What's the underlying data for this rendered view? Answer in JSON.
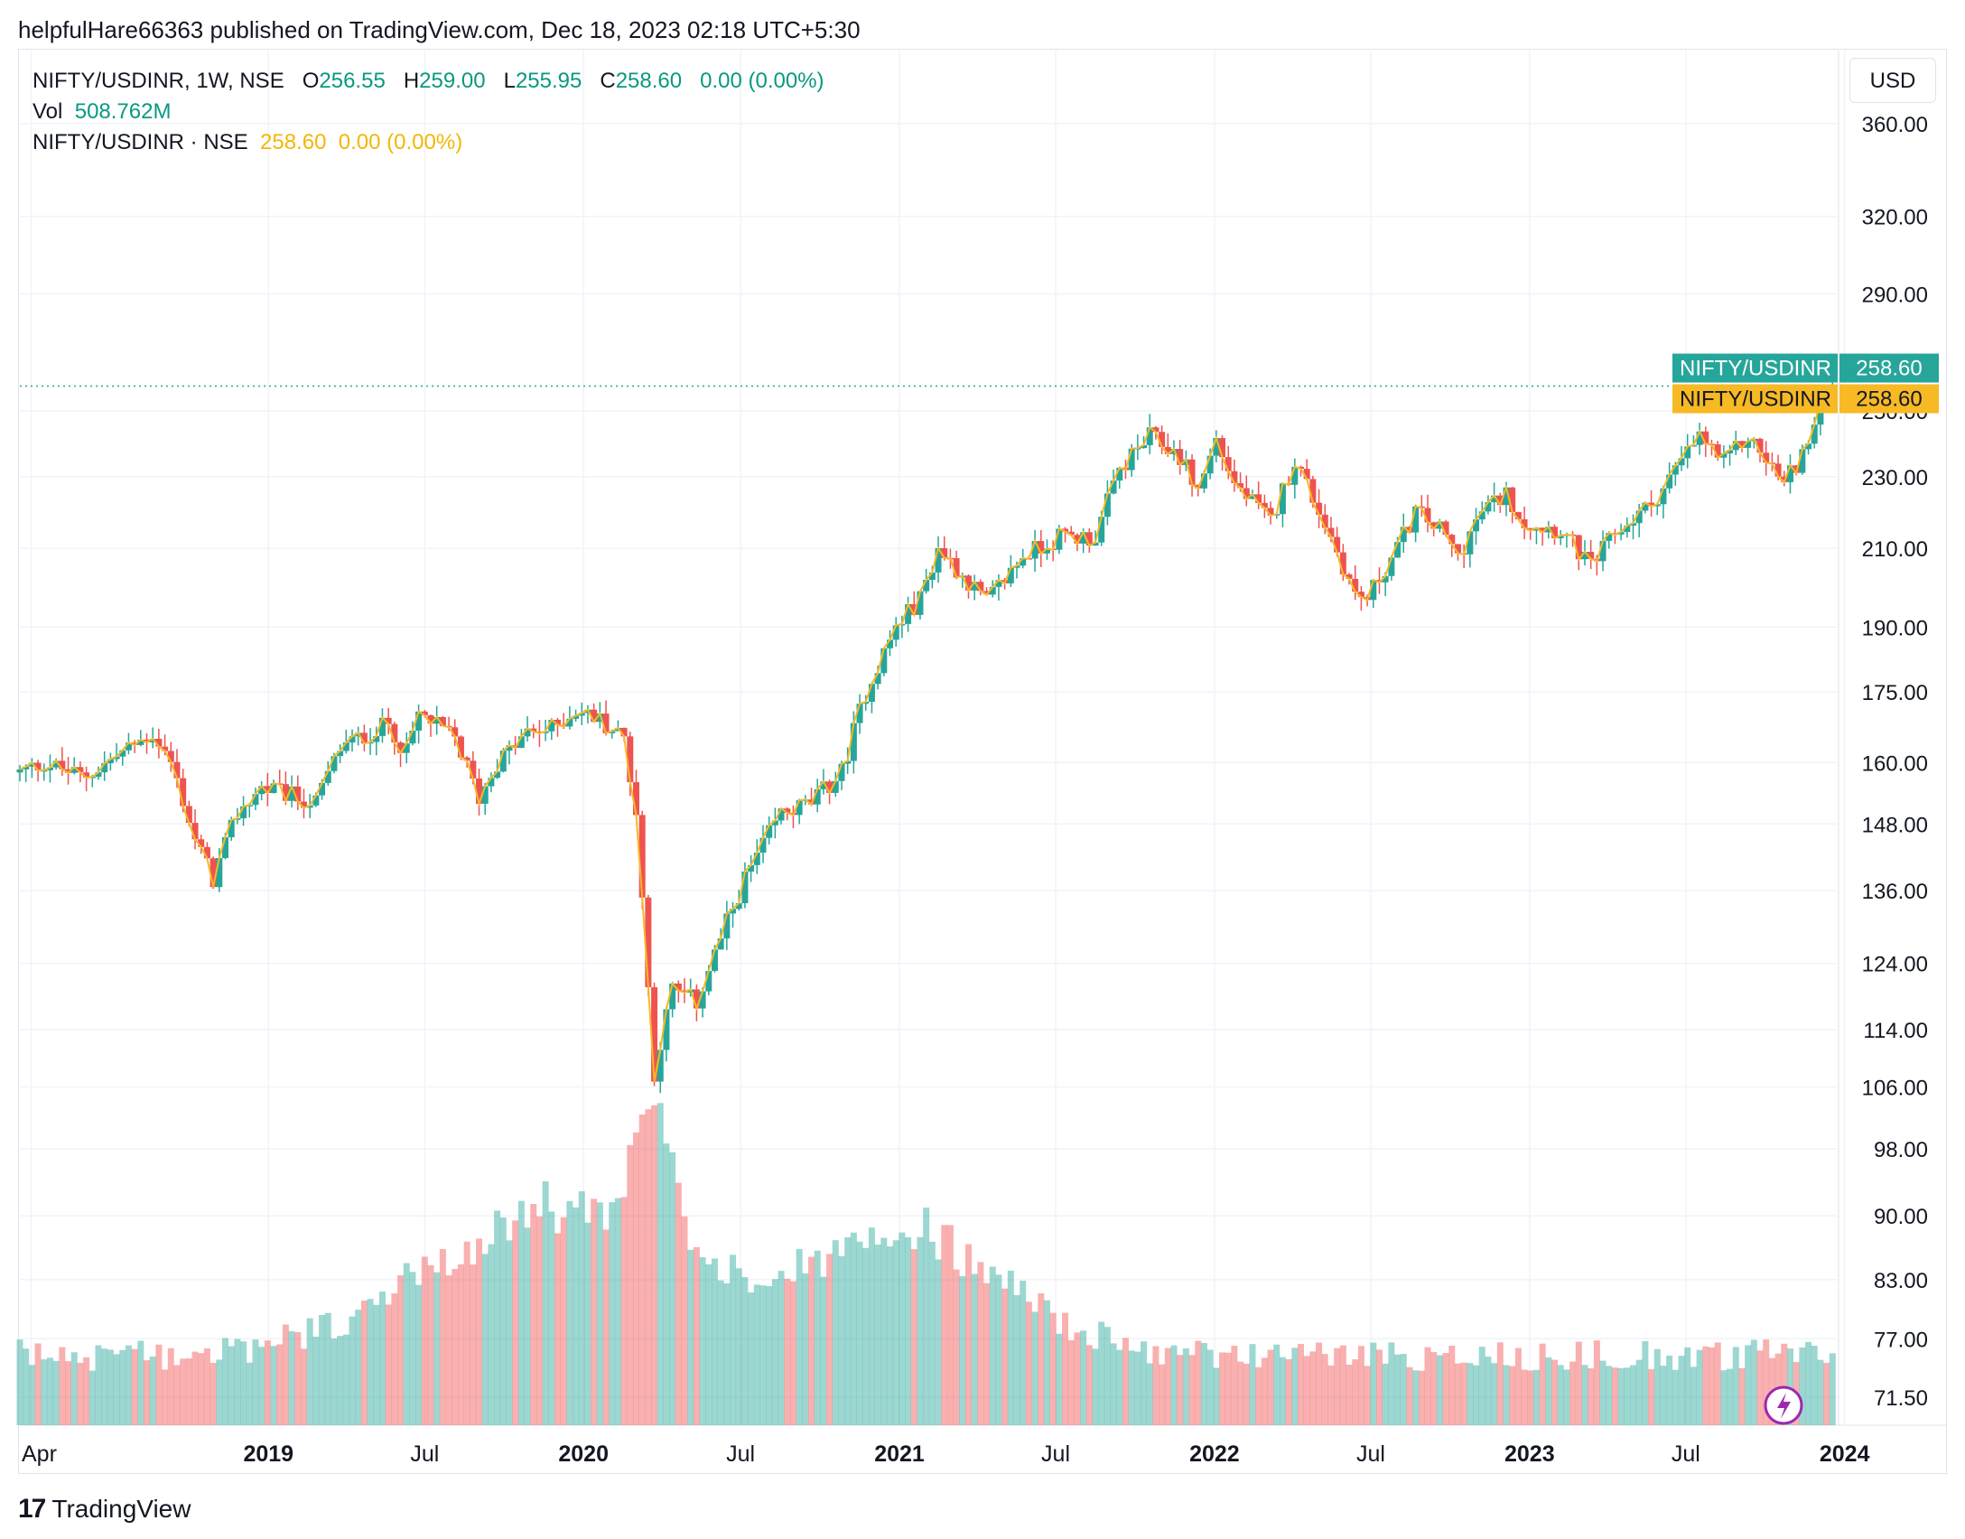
{
  "header": {
    "published": "helpfulHare66363 published on TradingView.com, Dec 18, 2023 02:18 UTC+5:30"
  },
  "legend": {
    "symbol": "NIFTY/USDINR, 1W, NSE",
    "o_label": "O",
    "o_value": "256.55",
    "h_label": "H",
    "h_value": "259.00",
    "l_label": "L",
    "l_value": "255.95",
    "c_label": "C",
    "c_value": "258.60",
    "change": "0.00 (0.00%)",
    "vol_label": "Vol",
    "vol_value": "508.762M",
    "line_label": "NIFTY/USDINR · NSE",
    "line_value": "258.60",
    "line_change": "0.00 (0.00%)"
  },
  "toolbar": {
    "currency": "USD"
  },
  "footer": {
    "brand": "TradingView",
    "logo": "17"
  },
  "colors": {
    "up": "#26a69a",
    "down": "#ef5350",
    "line": "#f7b924",
    "up_vol": "#26a69a",
    "down_vol": "#ef5350",
    "grid": "#f0f3fa"
  },
  "chart_data": {
    "type": "candlestick",
    "y_scale": "log",
    "ylim": [
      69,
      395
    ],
    "y_ticks": [
      360,
      320,
      290,
      250,
      230,
      210,
      190,
      175,
      160,
      148,
      136,
      124,
      114,
      106,
      98,
      90,
      83,
      77,
      71.5
    ],
    "y_tick_labels": [
      "360.00",
      "320.00",
      "290.00",
      "250.00",
      "230.00",
      "210.00",
      "190.00",
      "175.00",
      "160.00",
      "148.00",
      "136.00",
      "124.00",
      "114.00",
      "106.00",
      "98.00",
      "90.00",
      "83.00",
      "77.00",
      "71.50"
    ],
    "x_range": [
      "2018-03-19",
      "2023-12-25"
    ],
    "x_ticks": [
      {
        "date": "2018-04-01",
        "label": "Apr",
        "bold": false
      },
      {
        "date": "2019-01-01",
        "label": "2019",
        "bold": true
      },
      {
        "date": "2019-07-01",
        "label": "Jul",
        "bold": false
      },
      {
        "date": "2020-01-01",
        "label": "2020",
        "bold": true
      },
      {
        "date": "2020-07-01",
        "label": "Jul",
        "bold": false
      },
      {
        "date": "2021-01-01",
        "label": "2021",
        "bold": true
      },
      {
        "date": "2021-07-01",
        "label": "Jul",
        "bold": false
      },
      {
        "date": "2022-01-01",
        "label": "2022",
        "bold": true
      },
      {
        "date": "2022-07-01",
        "label": "Jul",
        "bold": false
      },
      {
        "date": "2023-01-01",
        "label": "2023",
        "bold": true
      },
      {
        "date": "2023-07-01",
        "label": "Jul",
        "bold": false
      },
      {
        "date": "2024-01-01",
        "label": "2024",
        "bold": true
      }
    ],
    "close_path": [
      [
        "2018-03-19",
        158
      ],
      [
        "2018-04-16",
        160
      ],
      [
        "2018-06-01",
        157
      ],
      [
        "2018-08-20",
        166
      ],
      [
        "2018-09-10",
        160
      ],
      [
        "2018-10-08",
        145
      ],
      [
        "2018-10-29",
        138
      ],
      [
        "2018-11-26",
        150
      ],
      [
        "2018-12-24",
        155
      ],
      [
        "2019-02-04",
        153
      ],
      [
        "2019-02-25",
        152
      ],
      [
        "2019-03-25",
        163
      ],
      [
        "2019-05-20",
        168
      ],
      [
        "2019-06-10",
        162
      ],
      [
        "2019-06-24",
        170
      ],
      [
        "2019-08-05",
        165
      ],
      [
        "2019-09-02",
        153
      ],
      [
        "2019-09-23",
        160
      ],
      [
        "2019-10-28",
        166
      ],
      [
        "2019-11-25",
        167
      ],
      [
        "2019-12-23",
        171
      ],
      [
        "2020-01-20",
        169
      ],
      [
        "2020-02-17",
        165
      ],
      [
        "2020-03-02",
        150
      ],
      [
        "2020-03-16",
        120
      ],
      [
        "2020-03-23",
        108
      ],
      [
        "2020-04-13",
        120
      ],
      [
        "2020-05-11",
        118
      ],
      [
        "2020-06-08",
        128
      ],
      [
        "2020-07-06",
        138
      ],
      [
        "2020-08-17",
        150
      ],
      [
        "2020-09-21",
        152
      ],
      [
        "2020-10-26",
        158
      ],
      [
        "2020-11-23",
        175
      ],
      [
        "2020-12-28",
        190
      ],
      [
        "2021-01-25",
        197
      ],
      [
        "2021-02-15",
        210
      ],
      [
        "2021-03-15",
        203
      ],
      [
        "2021-04-12",
        196
      ],
      [
        "2021-05-24",
        208
      ],
      [
        "2021-07-05",
        213
      ],
      [
        "2021-08-16",
        213
      ],
      [
        "2021-09-13",
        232
      ],
      [
        "2021-10-18",
        242
      ],
      [
        "2021-11-22",
        236
      ],
      [
        "2021-12-13",
        226
      ],
      [
        "2022-01-03",
        241
      ],
      [
        "2022-01-24",
        228
      ],
      [
        "2022-03-07",
        217
      ],
      [
        "2022-04-04",
        235
      ],
      [
        "2022-05-16",
        213
      ],
      [
        "2022-06-13",
        198
      ],
      [
        "2022-06-27",
        197
      ],
      [
        "2022-08-01",
        210
      ],
      [
        "2022-08-22",
        220
      ],
      [
        "2022-09-19",
        215
      ],
      [
        "2022-10-10",
        208
      ],
      [
        "2022-11-07",
        220
      ],
      [
        "2022-12-05",
        225
      ],
      [
        "2022-12-26",
        217
      ],
      [
        "2023-02-06",
        215
      ],
      [
        "2023-03-13",
        205
      ],
      [
        "2023-04-10",
        214
      ],
      [
        "2023-05-22",
        222
      ],
      [
        "2023-07-17",
        242
      ],
      [
        "2023-08-14",
        234
      ],
      [
        "2023-09-11",
        242
      ],
      [
        "2023-10-23",
        228
      ],
      [
        "2023-11-20",
        240
      ],
      [
        "2023-12-11",
        255
      ],
      [
        "2023-12-18",
        258.6
      ]
    ],
    "last_price": 258.6,
    "price_labels": [
      {
        "name": "NIFTY/USDINR",
        "value": "258.60",
        "color": "#26a69a"
      },
      {
        "name": "NIFTY/USDINR",
        "value": "258.60",
        "color": "#f7b924"
      }
    ]
  }
}
